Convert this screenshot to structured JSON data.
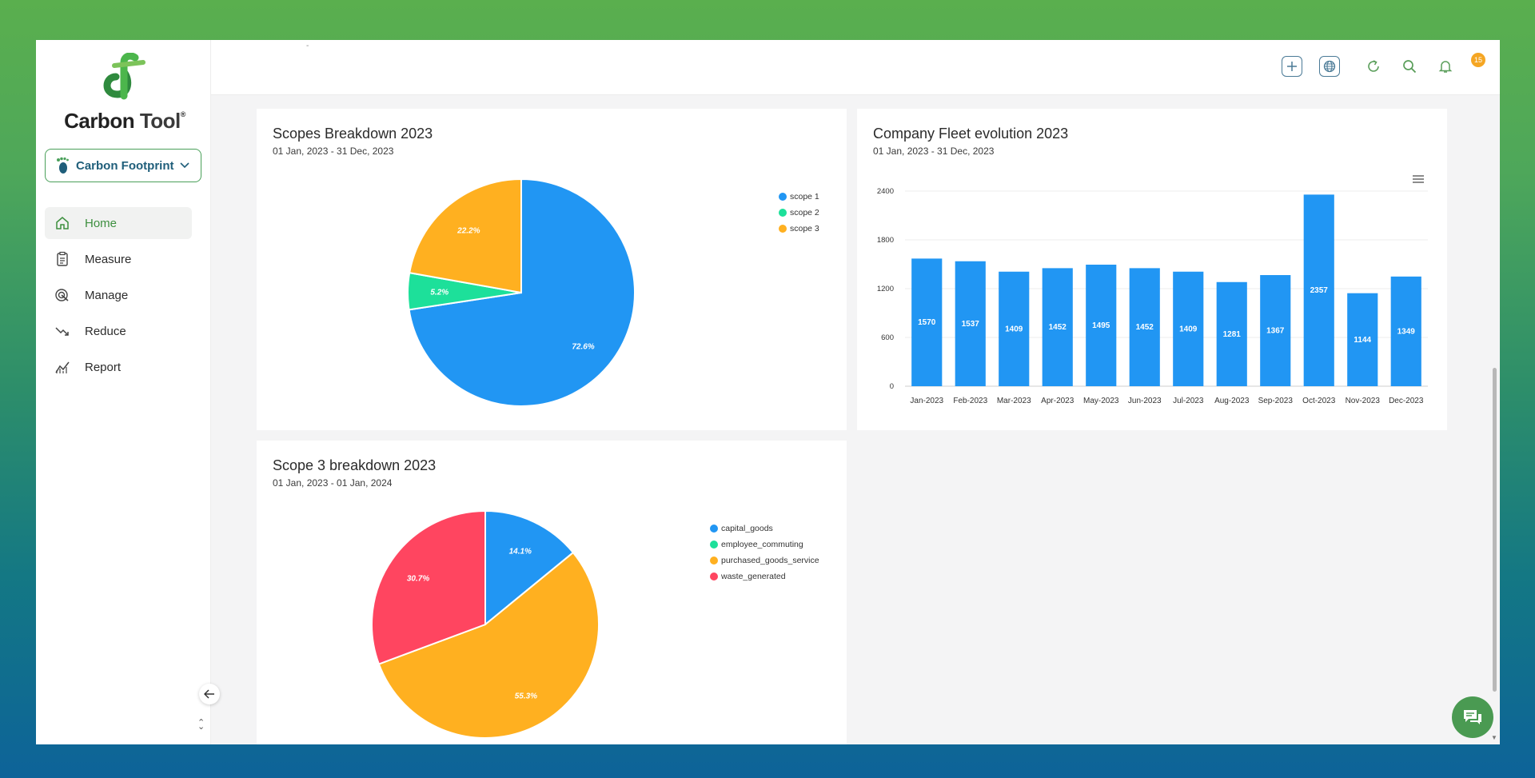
{
  "brand": {
    "name_part1": "Carbon",
    "name_part2": "Tool",
    "reg": "®"
  },
  "module_select": {
    "label": "Carbon Footprint"
  },
  "sidebar": {
    "items": [
      {
        "label": "Home",
        "icon": "home-icon",
        "active": true
      },
      {
        "label": "Measure",
        "icon": "clipboard-icon",
        "active": false
      },
      {
        "label": "Manage",
        "icon": "target-icon",
        "active": false
      },
      {
        "label": "Reduce",
        "icon": "trend-down-icon",
        "active": false
      },
      {
        "label": "Report",
        "icon": "chart-line-icon",
        "active": false
      }
    ]
  },
  "topbar": {
    "tiny_text": "-",
    "notification_count": "15"
  },
  "colors": {
    "accent": "#4aa05a",
    "blue": "#2196f3",
    "green": "#1de09a",
    "orange": "#ffb020",
    "red": "#ff4560"
  },
  "cards": {
    "scopes": {
      "title": "Scopes Breakdown 2023",
      "subtitle": "01 Jan, 2023 - 31 Dec, 2023"
    },
    "fleet": {
      "title": "Company Fleet evolution 2023",
      "subtitle": "01 Jan, 2023 - 31 Dec, 2023"
    },
    "scope3": {
      "title": "Scope 3 breakdown 2023",
      "subtitle": "01 Jan, 2023 - 01 Jan, 2024"
    }
  },
  "chart_data": [
    {
      "type": "pie",
      "title": "Scopes Breakdown 2023",
      "labels": [
        "scope 1",
        "scope 2",
        "scope 3"
      ],
      "values": [
        72.6,
        5.2,
        22.2
      ],
      "data_labels": [
        "72.6%",
        "5.2%",
        "22.2%"
      ],
      "colors": [
        "#2196f3",
        "#1de09a",
        "#ffb020"
      ],
      "legend": "right"
    },
    {
      "type": "bar",
      "title": "Company Fleet evolution 2023",
      "categories": [
        "Jan-2023",
        "Feb-2023",
        "Mar-2023",
        "Apr-2023",
        "May-2023",
        "Jun-2023",
        "Jul-2023",
        "Aug-2023",
        "Sep-2023",
        "Oct-2023",
        "Nov-2023",
        "Dec-2023"
      ],
      "values": [
        1570,
        1537,
        1409,
        1452,
        1495,
        1452,
        1409,
        1281,
        1367,
        2357,
        1144,
        1349
      ],
      "yticks": [
        "0",
        "600",
        "1200",
        "1800",
        "2400"
      ],
      "ylim": [
        0,
        2400
      ],
      "color": "#2196f3",
      "grid": true
    },
    {
      "type": "pie",
      "title": "Scope 3 breakdown 2023",
      "labels": [
        "capital_goods",
        "employee_commuting",
        "purchased_goods_service",
        "waste_generated"
      ],
      "values": [
        14.1,
        0,
        55.3,
        30.7
      ],
      "data_labels": [
        "14.1%",
        "",
        "55.3%",
        "30.7%"
      ],
      "colors": [
        "#2196f3",
        "#1de09a",
        "#ffb020",
        "#ff4560"
      ],
      "legend": "right"
    }
  ]
}
